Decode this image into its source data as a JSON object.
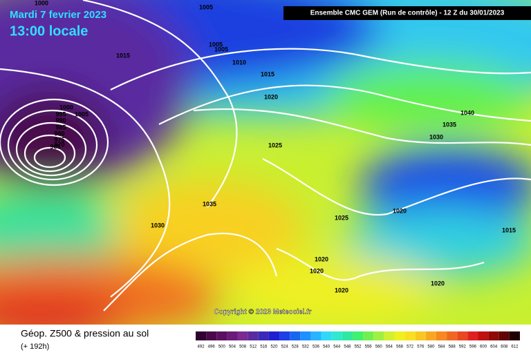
{
  "header": {
    "title": "Mardi 7 fevrier 2023",
    "time": "13:00 locale",
    "model": "Ensemble CMC GEM  (Run de contrôle)  -  12 Z du 30/01/2023"
  },
  "map": {
    "copyright": "Copyright © 2023 Meteociel.fr",
    "isobar_labels": [
      "1000",
      "1005",
      "1005",
      "1005",
      "1015",
      "1010",
      "1015",
      "1020",
      "1000",
      "1005",
      "995",
      "990",
      "985",
      "980",
      "975",
      "970",
      "965",
      "1025",
      "1040",
      "1035",
      "1030",
      "1035",
      "1030",
      "1025",
      "1020",
      "1015",
      "1020",
      "1020",
      "1020",
      "1020"
    ]
  },
  "footer": {
    "title": "Géop. Z500 & pression au sol",
    "subtitle": "(+ 192h)"
  },
  "legend": {
    "scale": [
      492,
      496,
      500,
      504,
      508,
      512,
      516,
      520,
      524,
      528,
      532,
      536,
      540,
      544,
      548,
      552,
      556,
      560,
      564,
      568,
      572,
      576,
      580,
      584,
      588,
      592,
      596,
      600,
      604,
      608,
      612
    ],
    "colors": [
      "#300030",
      "#4a0a4a",
      "#5a1060",
      "#6a1a78",
      "#7a2a90",
      "#5a2aa0",
      "#3a2ab8",
      "#2020d0",
      "#1e40e6",
      "#1a66f0",
      "#1e90ff",
      "#28b4ff",
      "#30d8f8",
      "#30e8d0",
      "#30e8a0",
      "#40f070",
      "#70f050",
      "#a0f040",
      "#d0f030",
      "#f0f020",
      "#f8e020",
      "#f8c820",
      "#f8a820",
      "#f88820",
      "#f06820",
      "#e84820",
      "#e02020",
      "#c01010",
      "#900808",
      "#600404",
      "#200000"
    ]
  }
}
